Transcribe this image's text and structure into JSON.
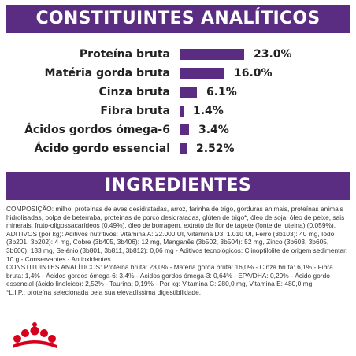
{
  "analytic_header": "CONSTITUINTES ANALÍTICOS",
  "ingredients_header": "INGREDIENTES",
  "brand_color": "#5b2d82",
  "rows": [
    {
      "label": "Proteína bruta",
      "value": "23.0%",
      "fraction": 0.23
    },
    {
      "label": "Matéria gorda bruta",
      "value": "16.0%",
      "fraction": 0.16
    },
    {
      "label": "Cinza bruta",
      "value": "6.1%",
      "fraction": 0.061
    },
    {
      "label": "Fibra bruta",
      "value": "1.4%",
      "fraction": 0.014
    },
    {
      "label": "Ácidos gordos ómega-6",
      "value": "3.4%",
      "fraction": 0.034
    },
    {
      "label": "Ácido gordo essencial",
      "value": "2.52%",
      "fraction": 0.0252
    }
  ],
  "ingredients_lines": [
    "COMPOSIÇÃO: milho, proteínas de aves desidratadas, arroz, farinha de trigo, gorduras animais, proteínas animais hidrolisadas, polpa de beterraba, proteínas de porco desidratadas, glúten de trigo*, óleo de soja, óleo de peixe, sais minerais, fruto-oligossacarídeos (0,49%), óleo de borragem, extrato de flor de tagete (fonte de luteína) (0,059%).",
    "ADITIVOS (por kg): Aditivos nutritivos: Vitamina A: 22.000 UI, Vitamina D3: 1.010 UI, Ferro (3b103): 40 mg, Iodo (3b201, 3b202): 4 mg, Cobre (3b405, 3b406): 12 mg, Manganês (3b502, 3b504): 52 mg, Zinco (3b603, 3b605, 3b606): 133 mg, Selénio (3b801, 3b811, 3b812): 0,06 mg - Aditivos tecnológicos: Clinoptilolite de origem sedimentar: 10 g - Conservantes - Antioxidantes.",
    "CONSTITUINTES ANALÍTICOS: Proteína bruta: 23,0% - Matéria gorda bruta: 16,0% - Cinza bruta: 6,1% - Fibra bruta: 1,4% - Ácidos gordos ómega-6: 3,4% - Ácidos gordos ómega-3: 0,64% - EPA/DHA: 0,29% - Ácido gordo essencial (ácido linoleico): 2,52% - Taurina: 0,19% - Por kg: Vitamina C: 280,0 mg, Vitamina E: 480,0 mg.",
    "*L.I.P.: proteína selecionada pela sua elevadíssima digestibilidade."
  ],
  "logo_icon": "royal-canin-crown-logo"
}
